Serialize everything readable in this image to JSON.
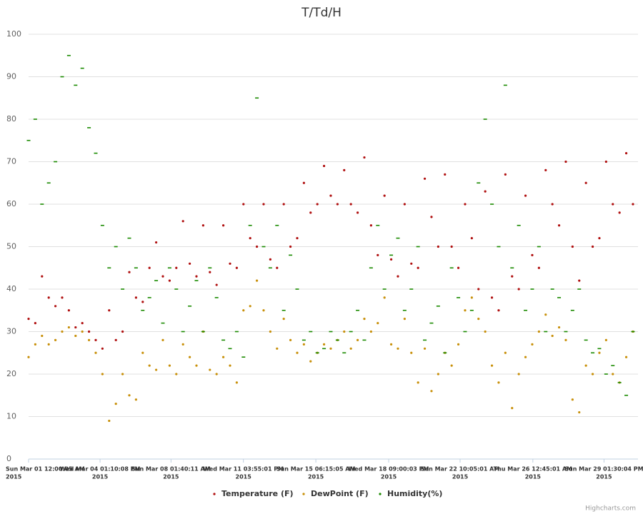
{
  "chart_data": {
    "type": "scatter",
    "title": "T/Td/H",
    "x": [
      "2015-03-01T00:00",
      "2015-03-01T08:00",
      "2015-03-01T16:00",
      "2015-03-02T00:00",
      "2015-03-02T08:00",
      "2015-03-02T16:00",
      "2015-03-03T00:00",
      "2015-03-03T08:00",
      "2015-03-03T16:00",
      "2015-03-04T00:00",
      "2015-03-04T08:00",
      "2015-03-04T16:00",
      "2015-03-05T00:00",
      "2015-03-05T08:00",
      "2015-03-05T16:00",
      "2015-03-06T00:00",
      "2015-03-06T08:00",
      "2015-03-06T16:00",
      "2015-03-07T00:00",
      "2015-03-07T08:00",
      "2015-03-07T16:00",
      "2015-03-08T00:00",
      "2015-03-08T08:00",
      "2015-03-08T16:00",
      "2015-03-09T00:00",
      "2015-03-09T08:00",
      "2015-03-09T16:00",
      "2015-03-10T00:00",
      "2015-03-10T08:00",
      "2015-03-10T16:00",
      "2015-03-11T00:00",
      "2015-03-11T08:00",
      "2015-03-11T16:00",
      "2015-03-12T00:00",
      "2015-03-12T08:00",
      "2015-03-12T16:00",
      "2015-03-13T00:00",
      "2015-03-13T08:00",
      "2015-03-13T16:00",
      "2015-03-14T00:00",
      "2015-03-14T08:00",
      "2015-03-14T16:00",
      "2015-03-15T00:00",
      "2015-03-15T08:00",
      "2015-03-15T16:00",
      "2015-03-16T00:00",
      "2015-03-16T08:00",
      "2015-03-16T16:00",
      "2015-03-17T00:00",
      "2015-03-17T08:00",
      "2015-03-17T16:00",
      "2015-03-18T00:00",
      "2015-03-18T08:00",
      "2015-03-18T16:00",
      "2015-03-19T00:00",
      "2015-03-19T08:00",
      "2015-03-19T16:00",
      "2015-03-20T00:00",
      "2015-03-20T08:00",
      "2015-03-20T16:00",
      "2015-03-21T00:00",
      "2015-03-21T08:00",
      "2015-03-21T16:00",
      "2015-03-22T00:00",
      "2015-03-22T08:00",
      "2015-03-22T16:00",
      "2015-03-23T00:00",
      "2015-03-23T08:00",
      "2015-03-23T16:00",
      "2015-03-24T00:00",
      "2015-03-24T08:00",
      "2015-03-24T16:00",
      "2015-03-25T00:00",
      "2015-03-25T08:00",
      "2015-03-25T16:00",
      "2015-03-26T00:00",
      "2015-03-26T08:00",
      "2015-03-26T16:00",
      "2015-03-27T00:00",
      "2015-03-27T08:00",
      "2015-03-27T16:00",
      "2015-03-28T00:00",
      "2015-03-28T08:00",
      "2015-03-28T16:00",
      "2015-03-29T00:00",
      "2015-03-29T08:00",
      "2015-03-29T16:00",
      "2015-03-30T00:00",
      "2015-03-30T08:00",
      "2015-03-30T16:00",
      "2015-03-31T00:00"
    ],
    "series": [
      {
        "name": "Temperature (F)",
        "color": "#b01010",
        "marker": "circle",
        "values": [
          33,
          32,
          43,
          38,
          36,
          38,
          35,
          31,
          32,
          30,
          28,
          26,
          35,
          28,
          30,
          44,
          38,
          37,
          45,
          51,
          43,
          42,
          45,
          56,
          46,
          43,
          55,
          44,
          41,
          55,
          46,
          45,
          60,
          52,
          50,
          60,
          47,
          45,
          60,
          50,
          52,
          65,
          58,
          60,
          69,
          62,
          60,
          68,
          60,
          58,
          71,
          55,
          48,
          62,
          47,
          43,
          60,
          46,
          45,
          66,
          57,
          50,
          67,
          50,
          45,
          60,
          52,
          40,
          63,
          38,
          35,
          67,
          43,
          40,
          62,
          48,
          45,
          68,
          60,
          55,
          70,
          50,
          42,
          65,
          50,
          52,
          70,
          60,
          58,
          72,
          60
        ]
      },
      {
        "name": "DewPoint (F)",
        "color": "#c8900a",
        "marker": "circle",
        "values": [
          24,
          27,
          29,
          27,
          28,
          30,
          31,
          29,
          30,
          28,
          25,
          20,
          9,
          13,
          20,
          15,
          14,
          25,
          22,
          21,
          28,
          22,
          20,
          27,
          24,
          22,
          30,
          21,
          20,
          24,
          22,
          18,
          35,
          36,
          42,
          35,
          30,
          26,
          33,
          28,
          25,
          27,
          23,
          25,
          27,
          26,
          28,
          30,
          26,
          28,
          33,
          30,
          32,
          38,
          27,
          26,
          33,
          25,
          18,
          26,
          16,
          20,
          25,
          22,
          27,
          35,
          38,
          33,
          30,
          22,
          18,
          25,
          12,
          20,
          24,
          27,
          30,
          34,
          29,
          31,
          28,
          14,
          11,
          22,
          20,
          25,
          28,
          20,
          18,
          24,
          30
        ]
      },
      {
        "name": "Humidity(%)",
        "color": "#1a8a00",
        "marker": "dash",
        "values": [
          75,
          80,
          60,
          65,
          70,
          90,
          95,
          88,
          92,
          78,
          72,
          55,
          45,
          50,
          40,
          52,
          45,
          35,
          38,
          42,
          32,
          45,
          40,
          30,
          36,
          42,
          30,
          45,
          38,
          28,
          26,
          30,
          24,
          55,
          85,
          50,
          45,
          55,
          35,
          48,
          40,
          28,
          30,
          25,
          26,
          30,
          28,
          25,
          30,
          35,
          28,
          45,
          55,
          40,
          48,
          52,
          35,
          40,
          50,
          28,
          32,
          36,
          25,
          45,
          38,
          30,
          35,
          65,
          80,
          60,
          50,
          88,
          45,
          55,
          35,
          40,
          50,
          30,
          40,
          38,
          30,
          35,
          40,
          28,
          25,
          26,
          20,
          22,
          18,
          15,
          30
        ]
      }
    ],
    "xlim": [
      "2015-03-01T00:00:05",
      "2015-03-31T06:00:00"
    ],
    "xticks": [
      {
        "value": "2015-03-01T00:00:05",
        "label": [
          "Sun Mar 01 12:00:05 AM",
          "2015"
        ]
      },
      {
        "value": "2015-03-04T13:10:08",
        "label": [
          "Wed Mar 04 01:10:08 PM",
          "2015"
        ]
      },
      {
        "value": "2015-03-08T01:40:11",
        "label": [
          "Sun Mar 08 01:40:11 AM",
          "2015"
        ]
      },
      {
        "value": "2015-03-11T15:55:01",
        "label": [
          "Wed Mar 11 03:55:01 PM",
          "2015"
        ]
      },
      {
        "value": "2015-03-15T06:15:05",
        "label": [
          "Sun Mar 15 06:15:05 AM",
          "2015"
        ]
      },
      {
        "value": "2015-03-18T21:00:03",
        "label": [
          "Wed Mar 18 09:00:03 PM",
          "2015"
        ]
      },
      {
        "value": "2015-03-22T10:05:01",
        "label": [
          "Sun Mar 22 10:05:01 AM",
          "2015"
        ]
      },
      {
        "value": "2015-03-26T00:45:01",
        "label": [
          "Thu Mar 26 12:45:01 AM",
          "2015"
        ]
      },
      {
        "value": "2015-03-29T13:30:04",
        "label": [
          "Sun Mar 29 01:30:04 PM",
          "2015"
        ]
      }
    ],
    "ylim": [
      0,
      100
    ],
    "yticks": [
      0,
      10,
      20,
      30,
      40,
      50,
      60,
      70,
      80,
      90,
      100
    ],
    "grid": true,
    "legend": "bottom",
    "credits": "Highcharts.com"
  }
}
